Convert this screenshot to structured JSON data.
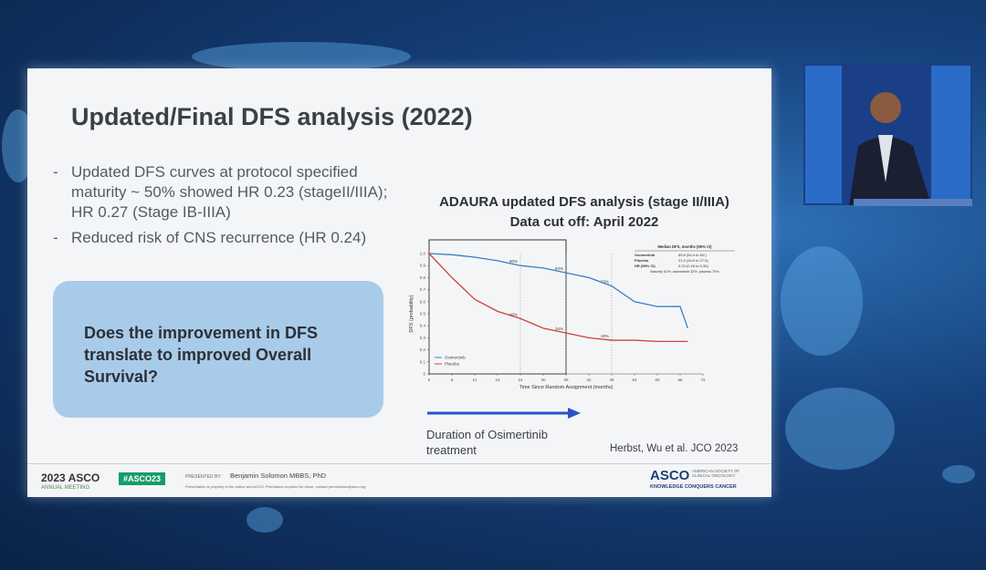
{
  "slide": {
    "title": "Updated/Final DFS analysis (2022)",
    "bullets": [
      "Updated DFS curves at protocol specified maturity ~ 50% showed HR 0.23 (stageII/IIIA); HR 0.27 (Stage IB-IIIA)",
      "Reduced risk of CNS recurrence (HR 0.24)"
    ],
    "question": "Does the improvement in DFS translate to improved Overall Survival?",
    "arrow_caption": "Duration of Osimertinib treatment",
    "citation": "Herbst, Wu et al. JCO 2023"
  },
  "chart_data": {
    "type": "line",
    "title": "ADAURA updated DFS analysis (stage II/IIIA)",
    "subtitle": "Data cut off: April 2022",
    "x_label": "Time Since Random Assignment (months)",
    "y_label": "DFS (probability)",
    "x": [
      0,
      6,
      12,
      18,
      24,
      30,
      36,
      42,
      48,
      54,
      60,
      66,
      68
    ],
    "series": [
      {
        "name": "Osimertinib",
        "color": "#3a7fc4",
        "values": [
          1,
          0.99,
          0.97,
          0.94,
          0.9,
          0.88,
          0.84,
          0.8,
          0.73,
          0.6,
          0.56,
          0.56,
          0.38
        ],
        "value_labels": [
          null,
          null,
          null,
          null,
          "90%",
          null,
          "84%",
          null,
          "73%",
          null,
          null,
          null,
          null
        ]
      },
      {
        "name": "Placebo",
        "color": "#d0413a",
        "values": [
          1,
          0.8,
          0.62,
          0.52,
          0.46,
          0.38,
          0.34,
          0.3,
          0.28,
          0.28,
          0.27,
          0.27,
          0.27
        ],
        "value_labels": [
          null,
          null,
          null,
          null,
          "46%",
          null,
          "34%",
          null,
          "28%",
          null,
          null,
          null,
          null
        ]
      }
    ],
    "xlim": [
      0,
      72
    ],
    "xticks": [
      0,
      6,
      12,
      18,
      24,
      30,
      36,
      42,
      48,
      54,
      60,
      66,
      72
    ],
    "ylim": [
      0,
      1
    ],
    "yticks": [
      0,
      0.1,
      0.2,
      0.3,
      0.4,
      0.5,
      0.6,
      0.7,
      0.8,
      0.9,
      {
        "value": 1,
        "label": "1.0"
      }
    ],
    "grid": false,
    "inset_table": {
      "header": "Median DFS, months (95% CI)",
      "rows": [
        [
          "Osimertinib",
          "65.8 (54.4 to NC)"
        ],
        [
          "Placebo",
          "21.9 (16.6 to 27.5)"
        ],
        [
          "HR (95% CI)",
          "0.23 (0.18 to 0.30)"
        ]
      ],
      "note": "Maturity 51%; osimertinib 32%, placebo 70%"
    }
  },
  "footer": {
    "meeting": "2023 ASCO",
    "meeting_sub": "ANNUAL MEETING",
    "hashtag": "#ASCO23",
    "presented_by": "PRESENTED BY:",
    "presenter": "Benjamin Solomon MBBS, PhD",
    "notice": "Presentation is property of the author and ASCO. Permission required for reuse; contact permissions@asco.org",
    "logo": "ASCO",
    "logo_sub": "AMERICAN SOCIETY OF CLINICAL ONCOLOGY",
    "tagline": "KNOWLEDGE CONQUERS CANCER"
  }
}
